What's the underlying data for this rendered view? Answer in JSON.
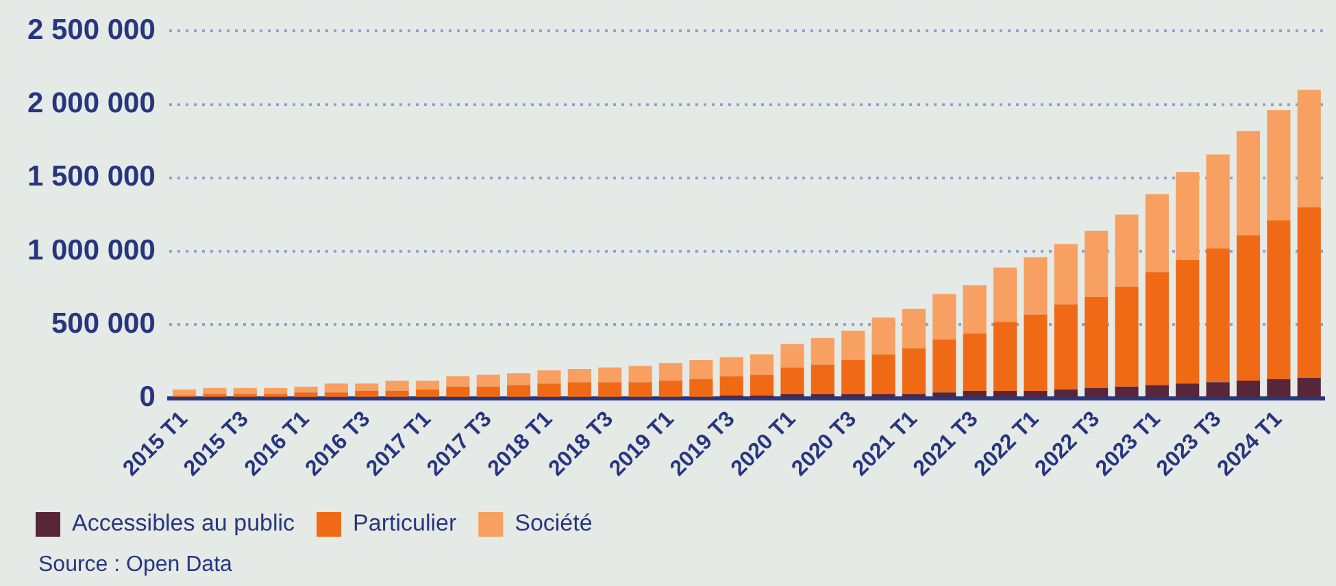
{
  "chart_data": {
    "type": "bar",
    "stacked": true,
    "categories": [
      "2015 T1",
      null,
      "2015 T3",
      null,
      "2016 T1",
      null,
      "2016 T3",
      null,
      "2017 T1",
      null,
      "2017 T3",
      null,
      "2018 T1",
      null,
      "2018 T3",
      null,
      "2019 T1",
      null,
      "2019 T3",
      null,
      "2020 T1",
      null,
      "2020 T3",
      null,
      "2021 T1",
      null,
      "2021 T3",
      null,
      "2022 T1",
      null,
      "2022 T3",
      null,
      "2023 T1",
      null,
      "2023 T3",
      null,
      "2024 T1",
      null
    ],
    "series": [
      {
        "name": "Accessibles au public",
        "color": "#57263a",
        "values": [
          null,
          null,
          null,
          null,
          null,
          null,
          null,
          null,
          null,
          10000,
          10000,
          10000,
          10000,
          10000,
          10000,
          10000,
          10000,
          10000,
          20000,
          20000,
          30000,
          30000,
          30000,
          30000,
          30000,
          40000,
          50000,
          50000,
          50000,
          60000,
          70000,
          80000,
          90000,
          100000,
          110000,
          120000,
          130000,
          140000
        ]
      },
      {
        "name": "Particulier",
        "color": "#f06a16",
        "values": [
          20000,
          30000,
          30000,
          30000,
          40000,
          40000,
          50000,
          50000,
          60000,
          70000,
          70000,
          80000,
          90000,
          100000,
          100000,
          100000,
          110000,
          120000,
          130000,
          140000,
          180000,
          200000,
          230000,
          270000,
          310000,
          360000,
          390000,
          470000,
          520000,
          580000,
          620000,
          680000,
          770000,
          840000,
          910000,
          990000,
          1080000,
          1160000
        ]
      },
      {
        "name": "Société",
        "color": "#f7a062",
        "values": [
          40000,
          40000,
          40000,
          40000,
          40000,
          60000,
          50000,
          70000,
          60000,
          70000,
          80000,
          80000,
          90000,
          90000,
          100000,
          110000,
          120000,
          130000,
          130000,
          140000,
          160000,
          180000,
          200000,
          250000,
          270000,
          310000,
          330000,
          370000,
          390000,
          410000,
          450000,
          490000,
          530000,
          600000,
          640000,
          710000,
          750000,
          800000
        ]
      }
    ],
    "ylim": [
      0,
      2500000
    ],
    "yticks": [
      0,
      {
        "value": 500000,
        "label": "500 000"
      },
      {
        "value": 1000000,
        "label": "1 000 000"
      },
      {
        "value": 1500000,
        "label": "1 500 000"
      },
      {
        "value": 2000000,
        "label": "2 000 000"
      },
      {
        "value": 2500000,
        "label": "2 500 000"
      }
    ],
    "grid": "y",
    "legend": "bottom left",
    "annotations": [
      "Source : Open Data"
    ]
  }
}
